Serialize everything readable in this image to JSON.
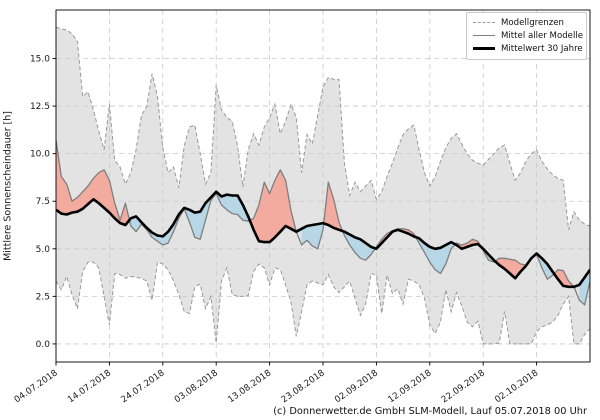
{
  "figure": {
    "ylabel": "Mittlere Sonnenscheindauer [h]",
    "caption": "(c) Donnerwetter.de GmbH SLM-Modell, Lauf 05.07.2018 00 Uhr"
  },
  "legend": {
    "items": [
      {
        "label": "Modellgrenzen",
        "style": "dashed-gray"
      },
      {
        "label": "Mittel aller Modelle",
        "style": "solid-gray"
      },
      {
        "label": "Mittelwert 30 Jahre",
        "style": "solid-black-thick"
      }
    ]
  },
  "colors": {
    "band_fill": "#e3e3e3",
    "band_edge": "#999999",
    "grid": "#c9c9c9",
    "model_mean_line": "#7f7f7f",
    "mean30_line": "#000000",
    "above_fill": "#f2ab9e",
    "below_fill": "#b7d6e6",
    "spine": "#000000",
    "tick_text": "#1a1a1a"
  },
  "chart_data": {
    "type": "line",
    "title": "",
    "xlabel": "",
    "ylabel": "Mittlere Sonnenscheindauer [h]",
    "ylim": [
      -0.95,
      17.55
    ],
    "y_ticks": [
      0.0,
      2.5,
      5.0,
      7.5,
      10.0,
      12.5,
      15.0
    ],
    "x_tick_days": [
      0,
      10,
      20,
      30,
      40,
      50,
      60,
      70,
      80,
      90
    ],
    "x_tick_labels": [
      "04.07.2018",
      "14.07.2018",
      "24.07.2018",
      "03.08.2018",
      "13.08.2018",
      "23.08.2018",
      "02.09.2018",
      "12.09.2018",
      "22.09.2018",
      "02.10.2018"
    ],
    "legend_position": "upper right",
    "grid": true,
    "n_days": 101,
    "series": [
      {
        "name": "Modellgrenzen oben",
        "role": "band_upper",
        "values": [
          16.65,
          16.55,
          16.5,
          16.3,
          15.9,
          13.0,
          13.25,
          12.3,
          11.2,
          10.2,
          12.6,
          9.65,
          9.3,
          8.4,
          9.0,
          10.2,
          12.0,
          12.5,
          14.2,
          13.0,
          10.3,
          9.0,
          9.3,
          8.2,
          10.4,
          11.4,
          11.5,
          10.0,
          8.4,
          9.0,
          13.6,
          12.3,
          11.9,
          11.7,
          10.4,
          8.25,
          10.2,
          11.05,
          10.45,
          11.4,
          11.9,
          12.6,
          11.05,
          11.7,
          12.6,
          11.9,
          9.0,
          11.0,
          10.5,
          12.0,
          13.5,
          14.0,
          13.9,
          13.9,
          9.5,
          7.8,
          8.5,
          8.0,
          8.3,
          8.6,
          7.6,
          8.0,
          8.8,
          9.5,
          10.3,
          11.0,
          11.3,
          11.5,
          10.2,
          9.0,
          8.3,
          8.8,
          9.6,
          10.3,
          10.8,
          11.05,
          10.5,
          10.0,
          9.65,
          9.5,
          9.4,
          9.7,
          10.0,
          10.3,
          10.45,
          9.5,
          8.6,
          9.0,
          9.6,
          10.0,
          10.2,
          9.6,
          9.2,
          8.9,
          8.7,
          8.6,
          6.0,
          6.95,
          6.5,
          6.3,
          6.2
        ]
      },
      {
        "name": "Modellgrenzen unten",
        "role": "band_lower",
        "values": [
          3.3,
          2.85,
          3.55,
          2.6,
          1.85,
          3.8,
          4.3,
          4.3,
          4.0,
          2.5,
          1.0,
          3.7,
          3.65,
          3.45,
          3.55,
          3.5,
          3.45,
          3.3,
          2.3,
          4.3,
          4.2,
          3.9,
          3.3,
          2.6,
          1.7,
          1.6,
          3.0,
          3.15,
          1.85,
          2.5,
          0.05,
          3.3,
          4.0,
          2.6,
          2.5,
          2.5,
          2.55,
          3.8,
          4.2,
          4.0,
          3.1,
          4.0,
          3.9,
          3.1,
          2.2,
          0.4,
          1.7,
          3.1,
          3.3,
          3.2,
          3.1,
          3.65,
          3.0,
          2.7,
          3.0,
          3.3,
          2.4,
          1.5,
          2.1,
          3.7,
          3.6,
          1.6,
          3.6,
          2.65,
          2.9,
          2.1,
          3.4,
          3.3,
          3.1,
          2.4,
          1.0,
          0.55,
          1.15,
          2.85,
          1.7,
          2.7,
          2.0,
          1.15,
          0.9,
          1.2,
          0.0,
          0.0,
          0.0,
          0.05,
          1.7,
          0.0,
          0.0,
          0.0,
          0.0,
          0.0,
          0.65,
          0.9,
          1.0,
          1.15,
          1.5,
          2.1,
          2.5,
          0.0,
          0.0,
          0.5,
          0.8
        ]
      },
      {
        "name": "Mittel aller Modelle",
        "role": "model_mean",
        "values": [
          10.7,
          8.8,
          8.4,
          7.5,
          7.7,
          8.0,
          8.3,
          8.7,
          9.0,
          9.15,
          8.6,
          7.4,
          6.5,
          7.4,
          6.2,
          5.9,
          6.3,
          6.0,
          5.6,
          5.4,
          5.2,
          5.3,
          5.9,
          6.6,
          7.1,
          6.4,
          5.6,
          5.5,
          6.5,
          7.55,
          7.9,
          7.3,
          7.05,
          6.85,
          6.8,
          6.5,
          6.45,
          6.6,
          7.3,
          8.5,
          7.9,
          8.6,
          9.15,
          8.6,
          7.0,
          5.9,
          5.2,
          5.45,
          5.15,
          5.0,
          6.0,
          8.5,
          7.6,
          6.4,
          5.7,
          5.2,
          4.8,
          4.5,
          4.4,
          4.7,
          5.1,
          5.5,
          5.8,
          5.95,
          6.05,
          6.05,
          6.0,
          5.8,
          5.3,
          4.8,
          4.3,
          3.9,
          3.7,
          4.2,
          5.0,
          5.3,
          5.2,
          5.3,
          5.5,
          5.4,
          4.9,
          4.4,
          4.3,
          4.5,
          4.5,
          4.45,
          4.4,
          4.2,
          4.15,
          4.5,
          4.7,
          4.0,
          3.4,
          3.6,
          3.9,
          3.85,
          3.3,
          3.0,
          2.3,
          2.05,
          3.3
        ]
      },
      {
        "name": "Mittelwert 30 Jahre",
        "role": "mean30",
        "values": [
          7.05,
          6.85,
          6.8,
          6.9,
          6.95,
          7.1,
          7.35,
          7.6,
          7.4,
          7.15,
          6.9,
          6.6,
          6.35,
          6.25,
          6.6,
          6.7,
          6.4,
          6.1,
          5.85,
          5.7,
          5.65,
          5.9,
          6.3,
          6.8,
          7.15,
          7.05,
          6.9,
          6.95,
          7.4,
          7.7,
          8.0,
          7.75,
          7.85,
          7.8,
          7.8,
          7.3,
          6.7,
          6.0,
          5.4,
          5.35,
          5.35,
          5.6,
          5.9,
          6.2,
          6.05,
          5.9,
          6.05,
          6.2,
          6.25,
          6.3,
          6.35,
          6.25,
          6.1,
          6.0,
          5.9,
          5.75,
          5.6,
          5.5,
          5.3,
          5.1,
          5.0,
          5.3,
          5.6,
          5.9,
          6.0,
          5.9,
          5.8,
          5.65,
          5.55,
          5.3,
          5.1,
          5.0,
          5.05,
          5.2,
          5.35,
          5.2,
          5.0,
          5.1,
          5.2,
          5.25,
          5.0,
          4.7,
          4.4,
          4.15,
          3.95,
          3.7,
          3.45,
          3.8,
          4.1,
          4.5,
          4.75,
          4.5,
          4.2,
          3.8,
          3.4,
          3.05,
          3.0,
          3.0,
          3.1,
          3.5,
          3.9
        ]
      }
    ],
    "fills": {
      "band": "gray area between Modellgrenzen oben/unten",
      "above": "model mean above 30-year mean (red)",
      "below": "model mean below 30-year mean (blue)"
    }
  }
}
